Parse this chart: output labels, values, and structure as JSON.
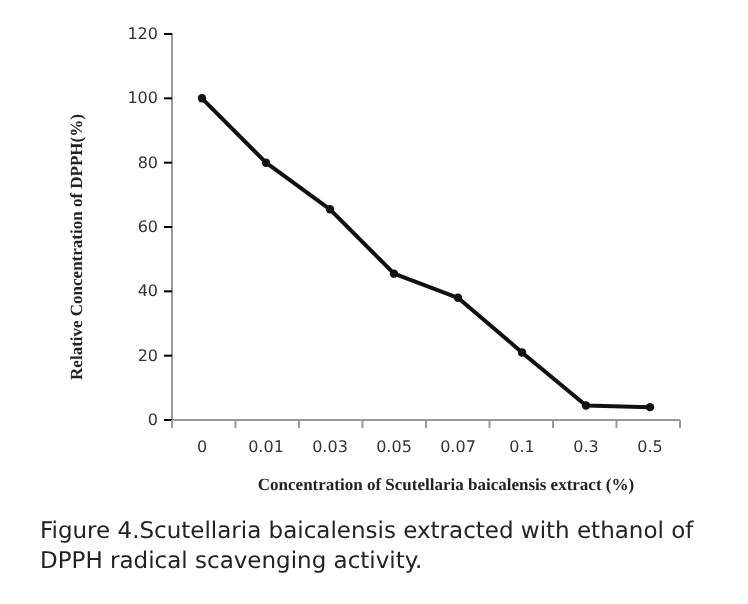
{
  "chart_data": {
    "type": "line",
    "categories": [
      "0",
      "0.01",
      "0.03",
      "0.05",
      "0.07",
      "0.1",
      "0.3",
      "0.5"
    ],
    "series": [
      {
        "color": "#111111",
        "values": [
          100,
          80,
          65.5,
          45.5,
          38,
          21,
          4.5,
          4
        ]
      }
    ],
    "ylim": [
      0,
      120
    ],
    "yticks": [
      0,
      20,
      40,
      60,
      80,
      100,
      120
    ],
    "xlabel": "Concentration of Scutellaria baicalensis extract (%)",
    "ylabel": "Relative Concentration of DPPH(%)",
    "marker": "circle",
    "line_style": "solid",
    "grid": false,
    "annotations": [
      "Figure 4.Scutellaria baicalensis extracted with ethanol of DPPH radical scavenging activity."
    ]
  }
}
